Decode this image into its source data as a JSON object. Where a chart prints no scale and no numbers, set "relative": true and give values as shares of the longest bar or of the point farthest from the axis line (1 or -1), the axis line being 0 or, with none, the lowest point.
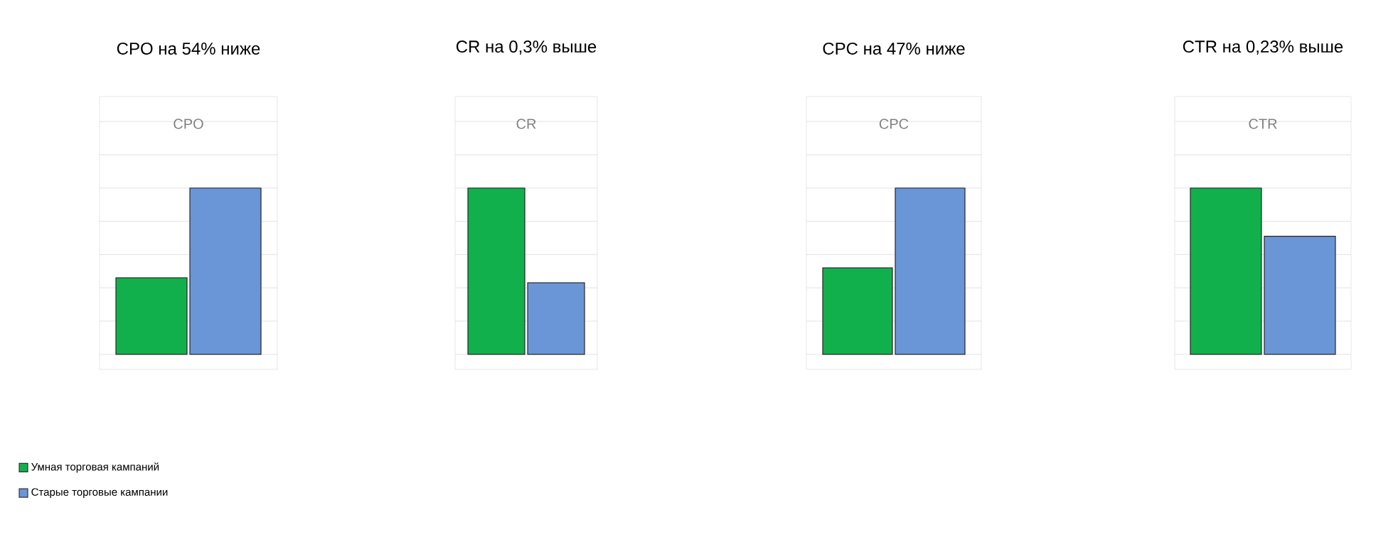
{
  "chart_data": [
    {
      "type": "bar",
      "title": "CPO на 54% ниже",
      "subtitle": "CPO",
      "categories": [
        null
      ],
      "relative": true,
      "grid": "y",
      "legend": "bottom left",
      "series": [
        {
          "name": "Умная торговая кампаний",
          "color": "#12b04c",
          "values": [
            0.46
          ]
        },
        {
          "name": "Старые торговые кампании",
          "color": "#6a96d8",
          "values": [
            1
          ]
        }
      ]
    },
    {
      "type": "bar",
      "title": "CR на 0,3% выше",
      "subtitle": "CR",
      "categories": [
        null
      ],
      "relative": true,
      "grid": "y",
      "series": [
        {
          "color": "#12b04c",
          "values": [
            1
          ]
        },
        {
          "color": "#6a96d8",
          "values": [
            0.43
          ]
        }
      ]
    },
    {
      "type": "bar",
      "title": "CPC на 47% ниже",
      "subtitle": "CPC",
      "categories": [
        null
      ],
      "relative": true,
      "grid": "y",
      "series": [
        {
          "color": "#12b04c",
          "values": [
            0.52
          ]
        },
        {
          "color": "#6a96d8",
          "values": [
            1
          ]
        }
      ]
    },
    {
      "type": "bar",
      "title": "CTR на 0,23% выше",
      "subtitle": "CTR",
      "categories": [
        null
      ],
      "relative": true,
      "grid": "y",
      "series": [
        {
          "color": "#12b04c",
          "values": [
            1
          ]
        },
        {
          "color": "#6a96d8",
          "values": [
            0.71
          ]
        }
      ]
    }
  ]
}
